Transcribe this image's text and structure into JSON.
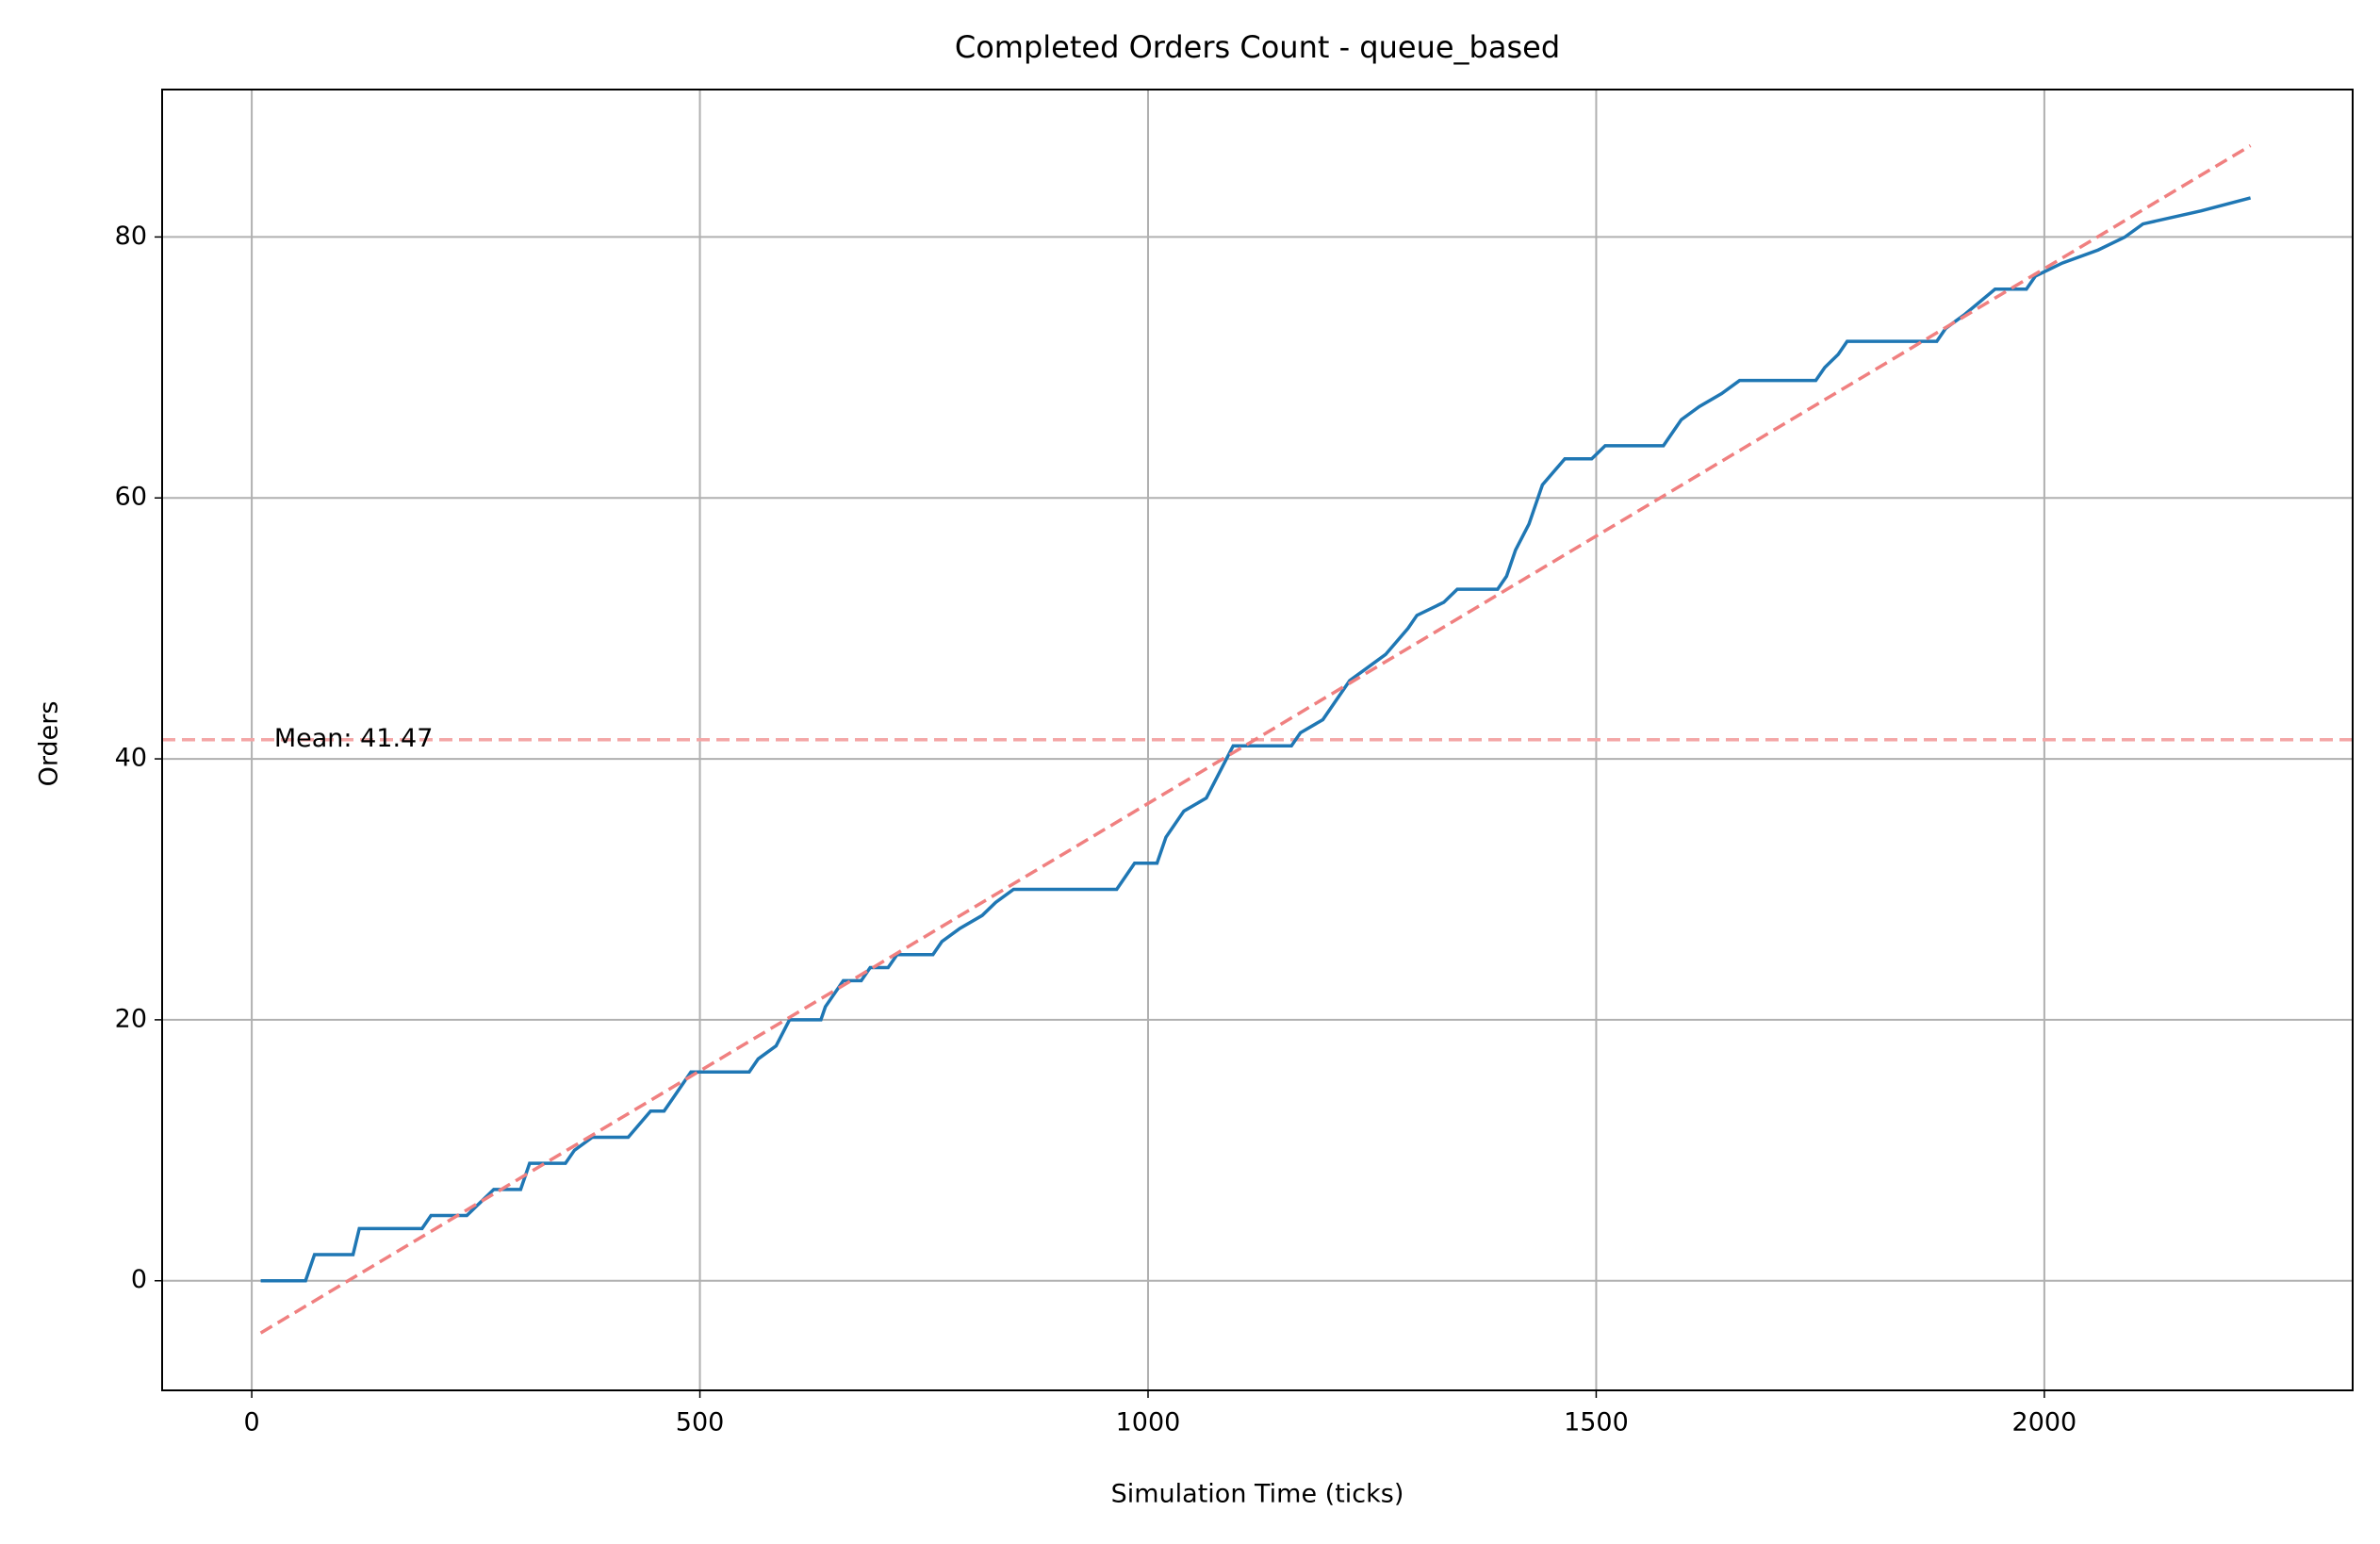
{
  "chart_data": {
    "type": "line",
    "title": "Completed Orders Count - queue_based",
    "xlabel": "Simulation Time (ticks)",
    "ylabel": "Orders",
    "xlim": [
      -100,
      2344
    ],
    "ylim": [
      -8.4,
      91.3
    ],
    "xticks": [
      0,
      500,
      1000,
      1500,
      2000
    ],
    "yticks": [
      0,
      20,
      40,
      60,
      80
    ],
    "grid": true,
    "series": [
      {
        "color": "#1f77b4",
        "x": [
          10,
          60,
          70,
          113,
          120,
          190,
          200,
          240,
          255,
          270,
          300,
          310,
          350,
          360,
          380,
          420,
          445,
          460,
          470,
          490,
          555,
          565,
          585,
          600,
          635,
          640,
          660,
          680,
          690,
          710,
          720,
          760,
          770,
          790,
          815,
          830,
          850,
          965,
          985,
          1010,
          1020,
          1040,
          1065,
          1080,
          1095,
          1160,
          1170,
          1195,
          1225,
          1245,
          1265,
          1290,
          1300,
          1330,
          1345,
          1390,
          1400,
          1410,
          1425,
          1430,
          1440,
          1465,
          1495,
          1510,
          1575,
          1595,
          1615,
          1640,
          1660,
          1745,
          1755,
          1770,
          1780,
          1880,
          1890,
          1910,
          1945,
          1980,
          1990,
          2020,
          2060,
          2090,
          2110,
          2175,
          2230
        ],
        "values": [
          0,
          0,
          2,
          2,
          4,
          4,
          5,
          5,
          6,
          7,
          7,
          9,
          9,
          10,
          11,
          11,
          13,
          13,
          14,
          16,
          16,
          17,
          18,
          20,
          20,
          21,
          23,
          23,
          24,
          24,
          25,
          25,
          26,
          27,
          28,
          29,
          30,
          30,
          32,
          32,
          34,
          36,
          37,
          39,
          41,
          41,
          42,
          43,
          46,
          47,
          48,
          50,
          51,
          52,
          53,
          53,
          54,
          56,
          58,
          59,
          61,
          63,
          63,
          64,
          64,
          66,
          67,
          68,
          69,
          69,
          70,
          71,
          72,
          72,
          73,
          74,
          76,
          76,
          77,
          78,
          79,
          80,
          81,
          82,
          83
        ]
      },
      {
        "color": "#f08080",
        "dashed": true,
        "x": [
          10,
          2230
        ],
        "values": [
          -4,
          87
        ]
      }
    ],
    "mean": {
      "value": 41.47,
      "label": "Mean: 41.47",
      "color": "#f4a6a6"
    }
  }
}
